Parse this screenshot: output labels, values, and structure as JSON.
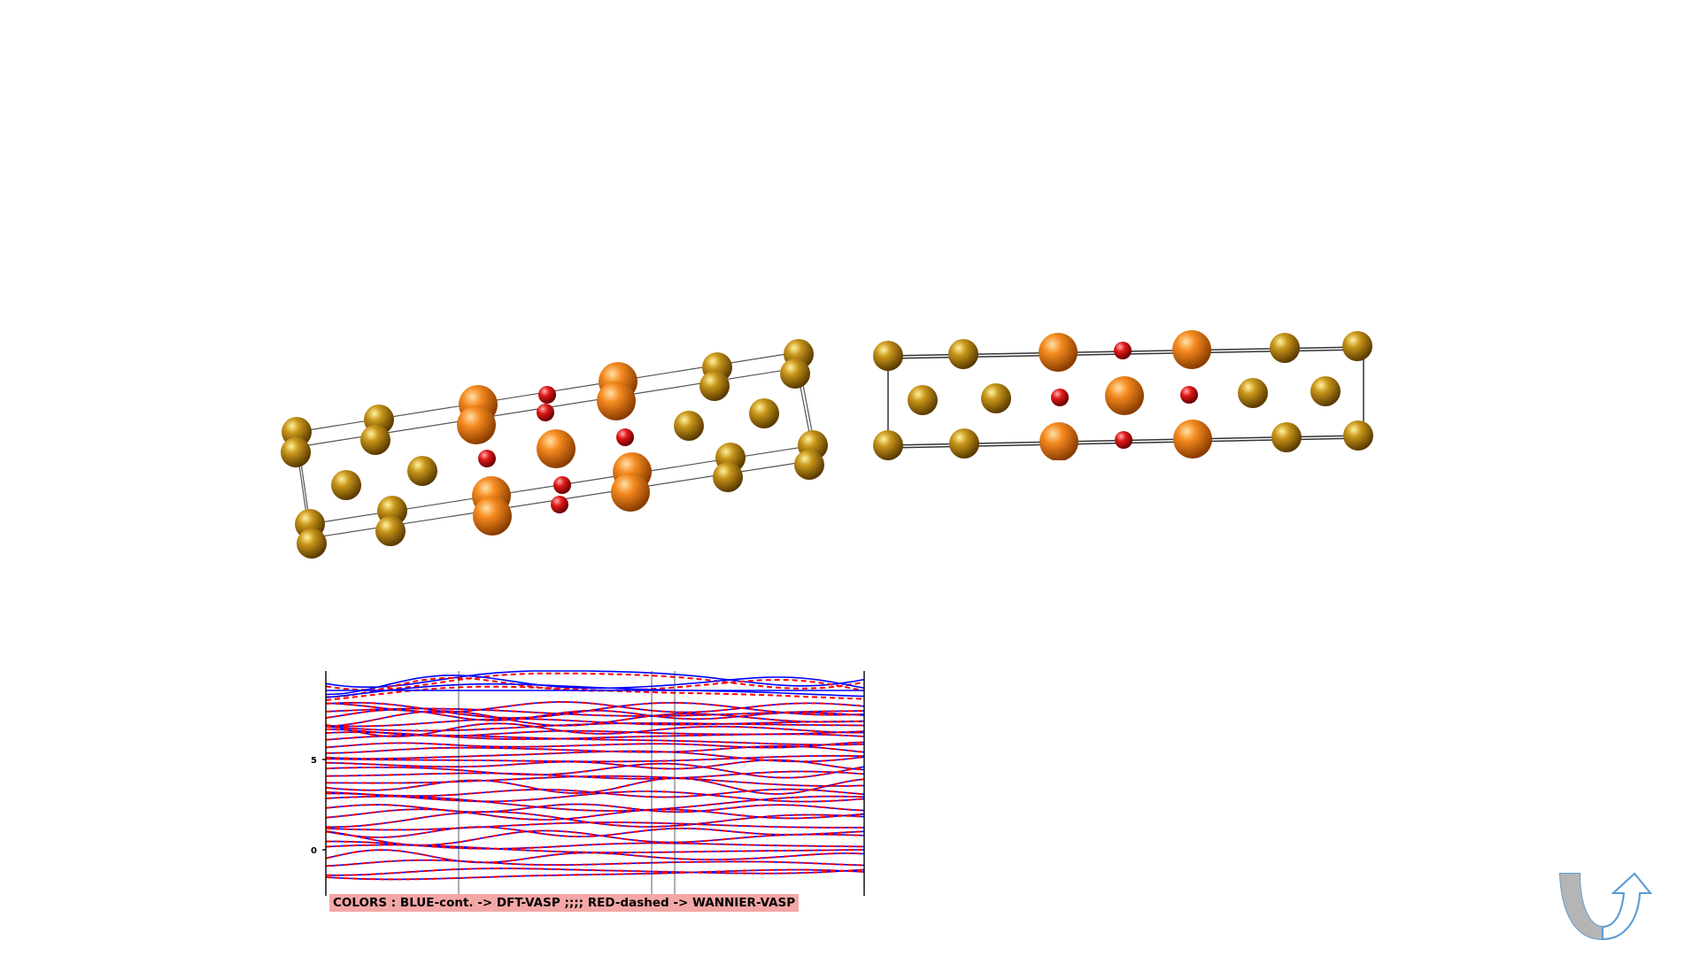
{
  "band_plot": {
    "ytick_labels": [
      "5",
      "0"
    ],
    "legend_caption": "COLORS : BLUE-cont. -> DFT-VASP ;;;; RED-dashed -> WANNIER-VASP",
    "colors": {
      "dft": "#0000ff",
      "wannier": "#ff0000",
      "caption_bg": "#f4a7a7"
    }
  },
  "crystal_structures": {
    "views": [
      "perspective",
      "side"
    ],
    "atom_colors": {
      "large": "#ff8c1a",
      "medium": "#b8860b",
      "small": "#e01010"
    }
  },
  "navigation": {
    "icon": "return-arrow-icon"
  }
}
